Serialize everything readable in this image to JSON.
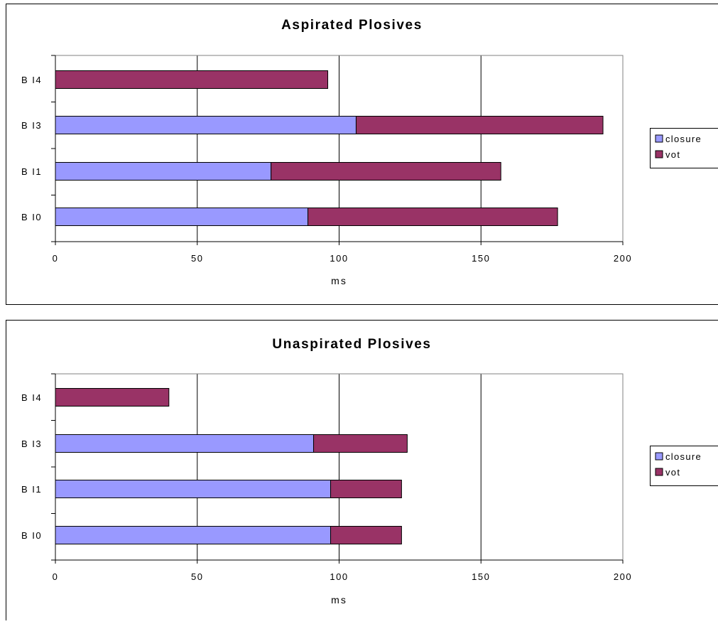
{
  "colors": {
    "closure": "#9999ff",
    "vot": "#993366",
    "frame": "#000000",
    "background": "#ffffff"
  },
  "chart_data": [
    {
      "type": "bar",
      "orientation": "horizontal",
      "stacked": true,
      "title": "Aspirated Plosives",
      "xlabel": "ms",
      "ylabel": "",
      "xlim": [
        0,
        200
      ],
      "xticks": [
        0,
        50,
        100,
        150,
        200
      ],
      "grid": true,
      "legend_position": "right",
      "categories": [
        "B I0",
        "B I1",
        "B I3",
        "B I4"
      ],
      "series": [
        {
          "name": "closure",
          "values": [
            89,
            76,
            106,
            0
          ]
        },
        {
          "name": "vot",
          "values": [
            88,
            81,
            87,
            96
          ]
        }
      ]
    },
    {
      "type": "bar",
      "orientation": "horizontal",
      "stacked": true,
      "title": "Unaspirated Plosives",
      "xlabel": "ms",
      "ylabel": "",
      "xlim": [
        0,
        200
      ],
      "xticks": [
        0,
        50,
        100,
        150,
        200
      ],
      "grid": true,
      "legend_position": "right",
      "categories": [
        "B I0",
        "B I1",
        "B I3",
        "B I4"
      ],
      "series": [
        {
          "name": "closure",
          "values": [
            97,
            97,
            91,
            0
          ]
        },
        {
          "name": "vot",
          "values": [
            25,
            25,
            33,
            40
          ]
        }
      ]
    }
  ]
}
